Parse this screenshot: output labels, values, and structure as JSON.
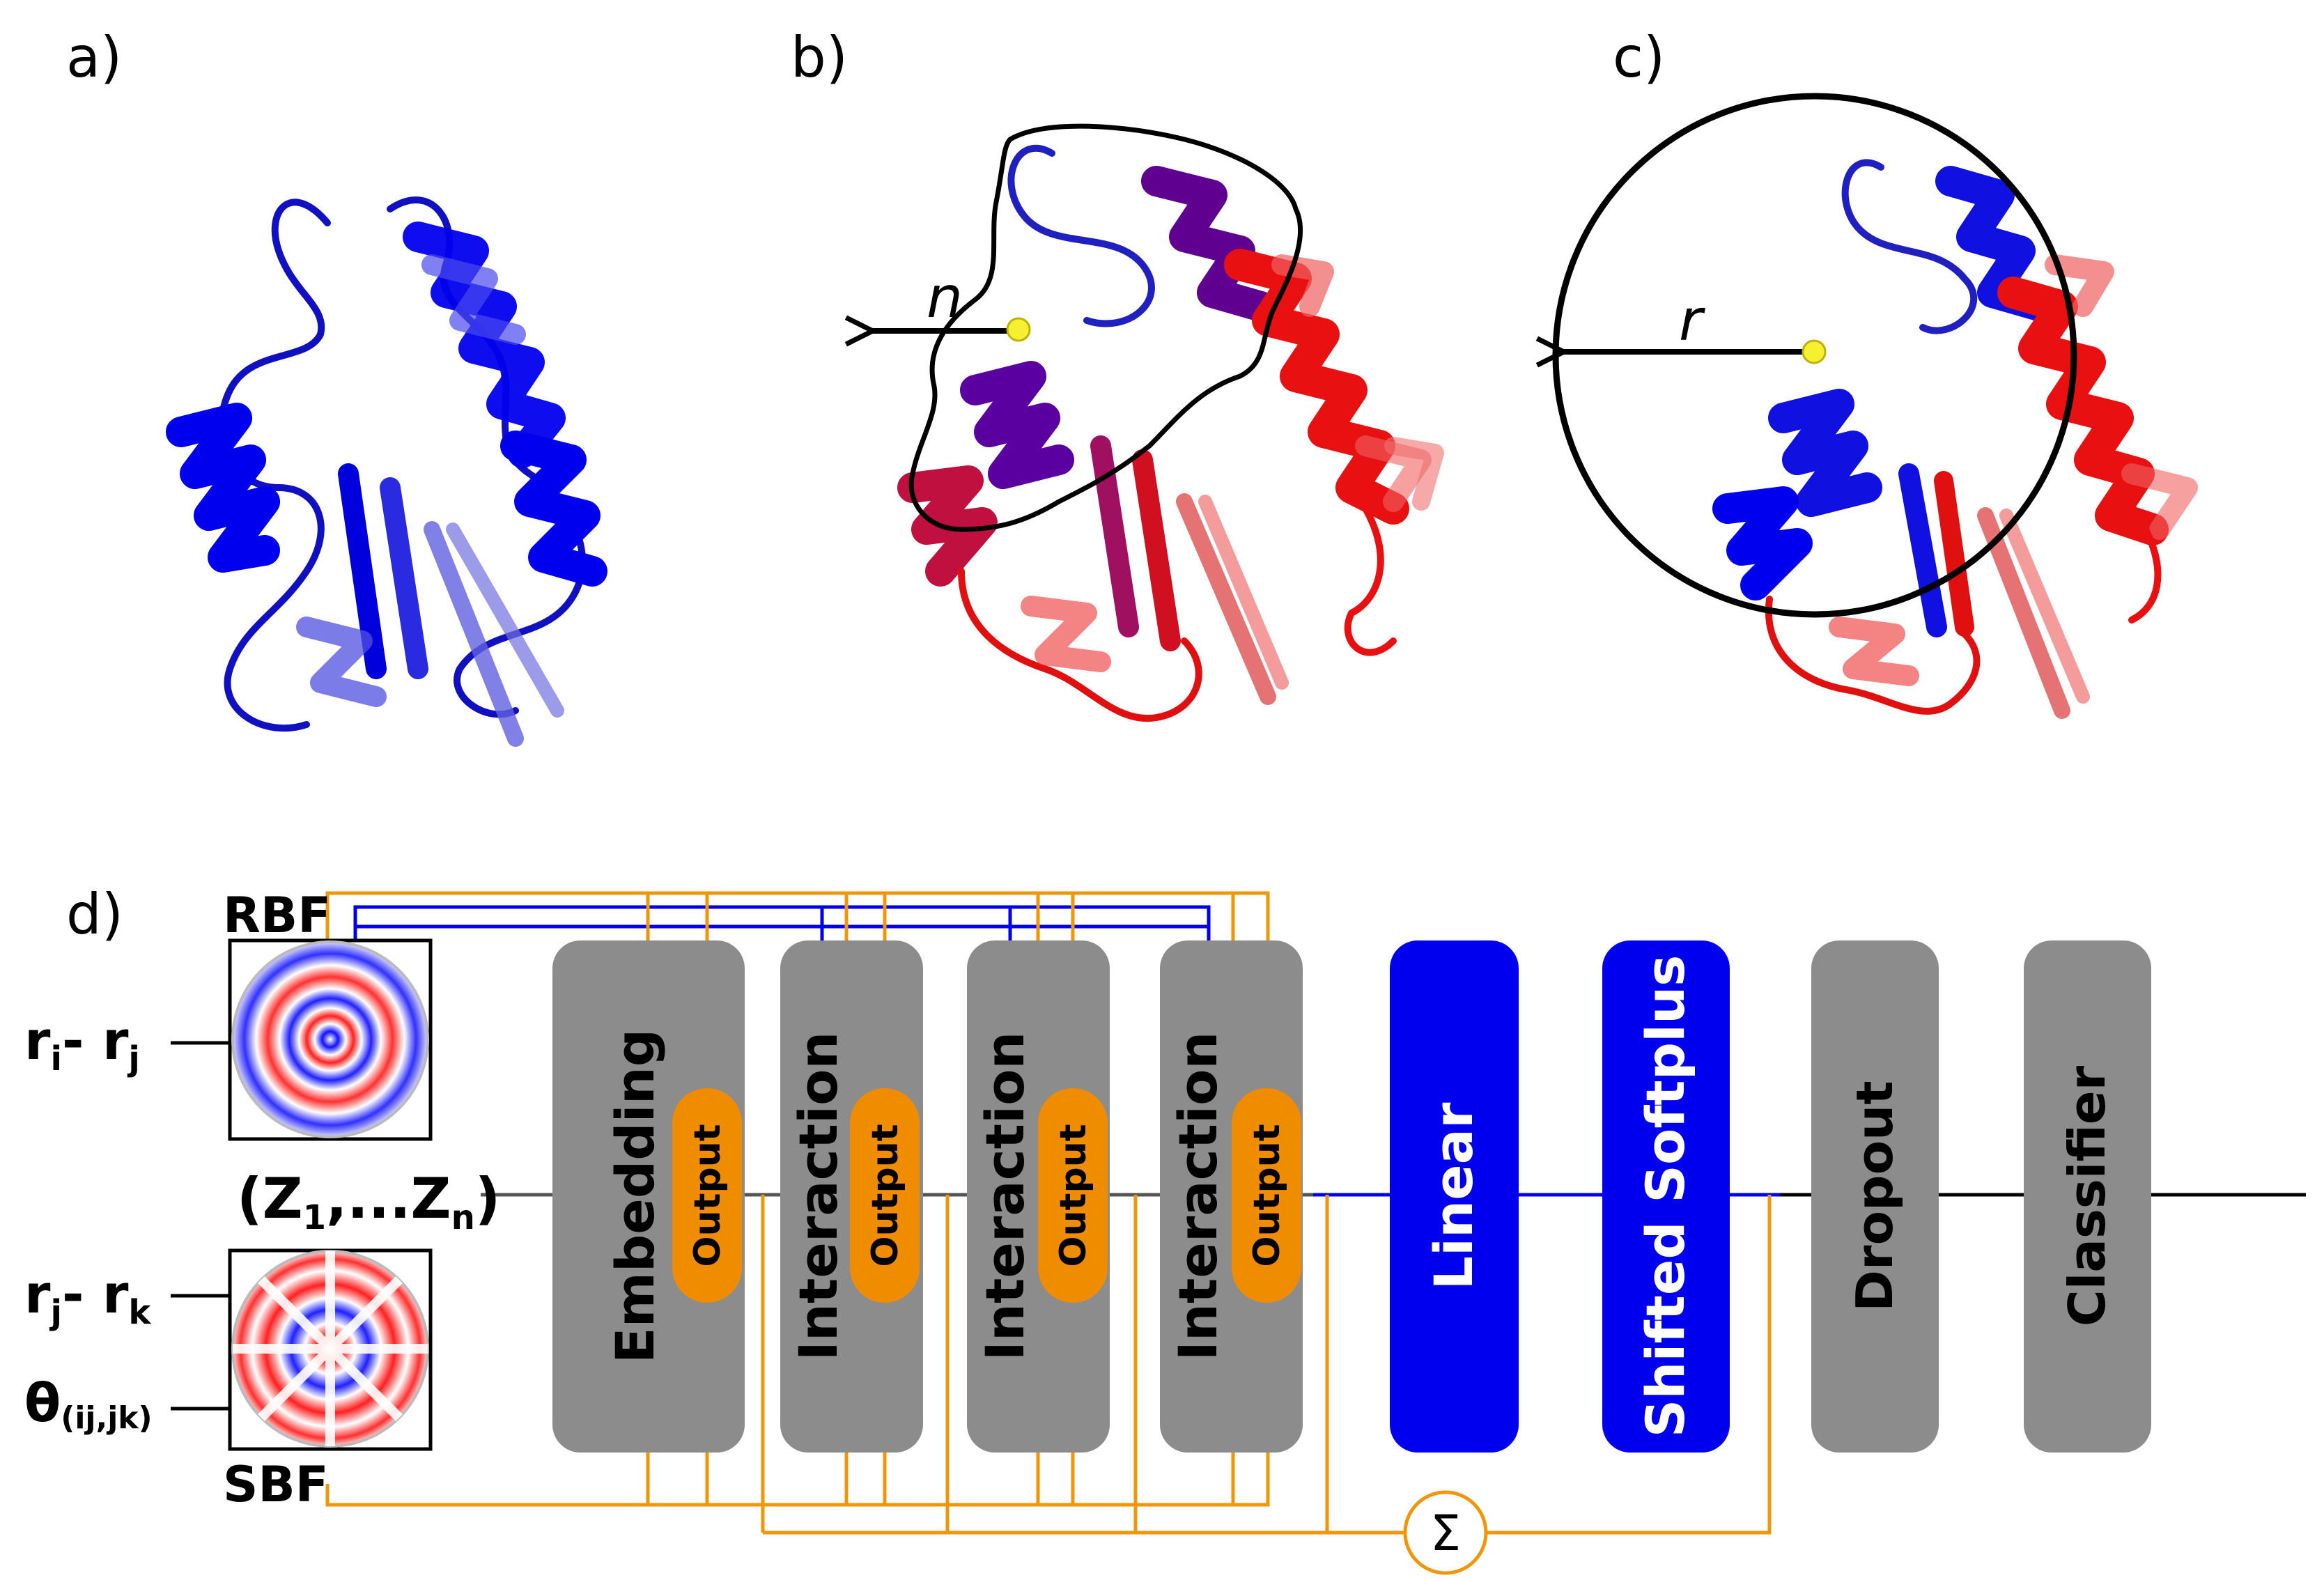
{
  "panels": {
    "a": "a)",
    "b": "b)",
    "c": "c)",
    "d": "d)"
  },
  "annotations": {
    "n_label": "n",
    "r_label": "r"
  },
  "inputs": {
    "rbf_title": "RBF",
    "sbf_title": "SBF",
    "rij_main": "r",
    "rij_sub1": "i",
    "rij_dash": "- r",
    "rij_sub2": "j",
    "rjk_main": "r",
    "rjk_sub1": "j",
    "rjk_dash": "- r",
    "rjk_sub2": "k",
    "theta_main": "θ",
    "theta_sub": "(ij,jk)",
    "z_open": "(Z",
    "z_sub1": "1",
    "z_mid": ",...Z",
    "z_subn": "n",
    "z_close": ")"
  },
  "blocks": {
    "embedding": "Embedding",
    "interaction1": "Interaction",
    "interaction2": "Interaction",
    "interaction3": "Interaction",
    "output": "Output",
    "linear": "Linear",
    "softplus": "Shifted Softplus",
    "dropout": "Dropout",
    "classifier": "Classifier"
  },
  "sum_symbol": "Σ",
  "colors": {
    "gray_block": "#8c8c8c",
    "blue_block": "#0000ee",
    "orange": "#f08c00",
    "orange_line": "#f0960a",
    "protein_blue": "#1010e0",
    "protein_red": "#e81010"
  }
}
